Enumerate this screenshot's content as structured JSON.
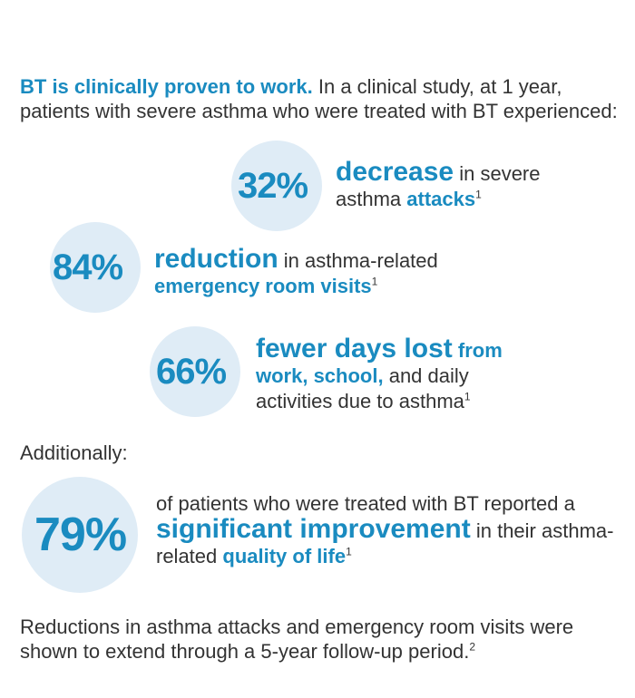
{
  "intro": {
    "lead": "BT is clinically proven to work.",
    "text": "In a clinical study, at 1 year, patients with severe asthma who were treated with BT experienced:"
  },
  "stats": [
    {
      "percent": "32%",
      "runs": [
        {
          "text": "decrease",
          "style": "big"
        },
        {
          "text": " in severe asthma ",
          "style": "plain"
        },
        {
          "text": "attacks",
          "style": "bold"
        },
        {
          "text": "1",
          "style": "sup"
        }
      ]
    },
    {
      "percent": "84%",
      "runs": [
        {
          "text": "reduction",
          "style": "big"
        },
        {
          "text": " in asthma-related ",
          "style": "plain"
        },
        {
          "text": "emergency room visits",
          "style": "bold"
        },
        {
          "text": "1",
          "style": "sup"
        }
      ]
    },
    {
      "percent": "66%",
      "runs": [
        {
          "text": "fewer days lost",
          "style": "big"
        },
        {
          "text": " from work, school,",
          "style": "bold"
        },
        {
          "text": " and daily activities due to asthma",
          "style": "plain"
        },
        {
          "text": "1",
          "style": "sup"
        }
      ]
    }
  ],
  "additionally": "Additionally:",
  "highlight": {
    "percent": "79%",
    "runs": [
      {
        "text": "of patients who were treated with BT reported a ",
        "style": "plain"
      },
      {
        "text": "significant improvement",
        "style": "big"
      },
      {
        "text": " in their asthma-related ",
        "style": "plain"
      },
      {
        "text": "quality of life",
        "style": "bold"
      },
      {
        "text": "1",
        "style": "sup"
      }
    ]
  },
  "footer": {
    "text": "Reductions in asthma attacks and emergency room visits were shown to extend through a 5-year follow-up period.",
    "sup": "2"
  }
}
